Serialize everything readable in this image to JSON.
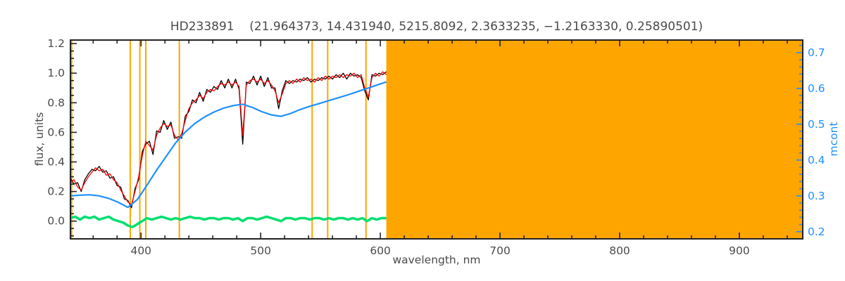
{
  "title": "HD233891    (21.964373, 14.431940, 5215.8092, 2.3633235, −1.2163330, 0.25890501)",
  "axes": {
    "left_label": "flux, units",
    "bottom_label": "wavelength, nm",
    "right_label": "mcont"
  },
  "chart_data": {
    "type": "line",
    "title": "HD233891    (21.964373, 14.431940, 5215.8092, 2.3633235, −1.2163330, 0.25890501)",
    "xlabel": "wavelength, nm",
    "ylabel_left": "flux, units",
    "ylabel_right": "mcont",
    "xlim": [
      341,
      953
    ],
    "ylim_left": [
      -0.12,
      1.224
    ],
    "ylim_right": [
      0.18,
      0.735
    ],
    "x_ticks": [
      400,
      500,
      600,
      700,
      800,
      900
    ],
    "y_ticks_left": [
      0.0,
      0.2,
      0.4,
      0.6,
      0.8,
      1.0,
      1.2
    ],
    "y_ticks_right": [
      0.2,
      0.3,
      0.4,
      0.5,
      0.6,
      0.7
    ],
    "x_minor_step": 20,
    "y_left_minor_step": 0.05,
    "y_right_minor_step": 0.02,
    "grid": false,
    "legend": "none",
    "colors": {
      "spectrum": "#000000",
      "fit": "#ff0000",
      "continuum": "#1e90ff",
      "residual": "#00df6f",
      "mask": "#ffa500",
      "frame": "#222222",
      "text": "#4a4a4a"
    },
    "masked_region": {
      "x_start": 605,
      "x_end": 953
    },
    "mask_lines_x": [
      342,
      391,
      399,
      404,
      432,
      543,
      556,
      588
    ],
    "series": [
      {
        "name": "observed-spectrum",
        "color_key": "spectrum",
        "axis": "left",
        "width": 1.3,
        "points": [
          [
            341,
            0.29
          ],
          [
            344,
            0.25
          ],
          [
            347,
            0.26
          ],
          [
            350,
            0.2
          ],
          [
            353,
            0.28
          ],
          [
            356,
            0.32
          ],
          [
            359,
            0.35
          ],
          [
            362,
            0.34
          ],
          [
            365,
            0.37
          ],
          [
            368,
            0.33
          ],
          [
            371,
            0.34
          ],
          [
            374,
            0.29
          ],
          [
            377,
            0.3
          ],
          [
            380,
            0.24
          ],
          [
            383,
            0.23
          ],
          [
            386,
            0.15
          ],
          [
            389,
            0.14
          ],
          [
            392,
            0.09
          ],
          [
            395,
            0.22
          ],
          [
            398,
            0.28
          ],
          [
            401,
            0.47
          ],
          [
            404,
            0.52
          ],
          [
            407,
            0.54
          ],
          [
            410,
            0.45
          ],
          [
            413,
            0.61
          ],
          [
            416,
            0.6
          ],
          [
            419,
            0.68
          ],
          [
            422,
            0.62
          ],
          [
            425,
            0.67
          ],
          [
            428,
            0.56
          ],
          [
            431,
            0.57
          ],
          [
            434,
            0.56
          ],
          [
            437,
            0.71
          ],
          [
            440,
            0.74
          ],
          [
            443,
            0.82
          ],
          [
            446,
            0.8
          ],
          [
            449,
            0.87
          ],
          [
            452,
            0.81
          ],
          [
            455,
            0.89
          ],
          [
            458,
            0.87
          ],
          [
            461,
            0.91
          ],
          [
            464,
            0.89
          ],
          [
            467,
            0.95
          ],
          [
            470,
            0.9
          ],
          [
            473,
            0.96
          ],
          [
            476,
            0.9
          ],
          [
            479,
            0.96
          ],
          [
            482,
            0.89
          ],
          [
            485,
            0.52
          ],
          [
            488,
            0.94
          ],
          [
            491,
            0.93
          ],
          [
            494,
            0.98
          ],
          [
            497,
            0.92
          ],
          [
            500,
            0.98
          ],
          [
            503,
            0.91
          ],
          [
            506,
            0.97
          ],
          [
            509,
            0.9
          ],
          [
            512,
            0.9
          ],
          [
            515,
            0.76
          ],
          [
            518,
            0.88
          ],
          [
            521,
            0.95
          ],
          [
            524,
            0.93
          ],
          [
            527,
            0.95
          ],
          [
            530,
            0.94
          ],
          [
            533,
            0.96
          ],
          [
            536,
            0.95
          ],
          [
            539,
            0.97
          ],
          [
            542,
            0.94
          ],
          [
            545,
            0.96
          ],
          [
            548,
            0.95
          ],
          [
            551,
            0.97
          ],
          [
            554,
            0.96
          ],
          [
            557,
            0.98
          ],
          [
            560,
            0.96
          ],
          [
            563,
            0.99
          ],
          [
            566,
            0.97
          ],
          [
            569,
            1.0
          ],
          [
            572,
            0.96
          ],
          [
            575,
            1.0
          ],
          [
            578,
            0.98
          ],
          [
            581,
            0.99
          ],
          [
            584,
            0.97
          ],
          [
            587,
            0.88
          ],
          [
            590,
            0.82
          ],
          [
            593,
            0.99
          ],
          [
            596,
            0.98
          ],
          [
            599,
            1.0
          ],
          [
            602,
            0.99
          ],
          [
            605,
            1.01
          ]
        ]
      },
      {
        "name": "fit-spectrum",
        "color_key": "fit",
        "axis": "left",
        "width": 1.3,
        "points": [
          [
            341,
            0.26
          ],
          [
            344,
            0.28
          ],
          [
            347,
            0.23
          ],
          [
            350,
            0.21
          ],
          [
            353,
            0.26
          ],
          [
            356,
            0.3
          ],
          [
            359,
            0.33
          ],
          [
            362,
            0.36
          ],
          [
            365,
            0.34
          ],
          [
            368,
            0.35
          ],
          [
            371,
            0.31
          ],
          [
            374,
            0.32
          ],
          [
            377,
            0.28
          ],
          [
            380,
            0.26
          ],
          [
            383,
            0.21
          ],
          [
            386,
            0.17
          ],
          [
            389,
            0.13
          ],
          [
            392,
            0.11
          ],
          [
            395,
            0.2
          ],
          [
            398,
            0.3
          ],
          [
            401,
            0.44
          ],
          [
            404,
            0.54
          ],
          [
            407,
            0.51
          ],
          [
            410,
            0.48
          ],
          [
            413,
            0.58
          ],
          [
            416,
            0.63
          ],
          [
            419,
            0.66
          ],
          [
            422,
            0.64
          ],
          [
            425,
            0.65
          ],
          [
            428,
            0.58
          ],
          [
            431,
            0.55
          ],
          [
            434,
            0.59
          ],
          [
            437,
            0.68
          ],
          [
            440,
            0.76
          ],
          [
            443,
            0.8
          ],
          [
            446,
            0.82
          ],
          [
            449,
            0.85
          ],
          [
            452,
            0.83
          ],
          [
            455,
            0.87
          ],
          [
            458,
            0.89
          ],
          [
            461,
            0.88
          ],
          [
            464,
            0.91
          ],
          [
            467,
            0.93
          ],
          [
            470,
            0.92
          ],
          [
            473,
            0.94
          ],
          [
            476,
            0.92
          ],
          [
            479,
            0.94
          ],
          [
            482,
            0.91
          ],
          [
            485,
            0.58
          ],
          [
            488,
            0.92
          ],
          [
            491,
            0.95
          ],
          [
            494,
            0.96
          ],
          [
            497,
            0.94
          ],
          [
            500,
            0.96
          ],
          [
            503,
            0.93
          ],
          [
            506,
            0.95
          ],
          [
            509,
            0.92
          ],
          [
            512,
            0.88
          ],
          [
            515,
            0.8
          ],
          [
            518,
            0.86
          ],
          [
            521,
            0.93
          ],
          [
            524,
            0.95
          ],
          [
            527,
            0.93
          ],
          [
            530,
            0.96
          ],
          [
            533,
            0.94
          ],
          [
            536,
            0.97
          ],
          [
            539,
            0.95
          ],
          [
            542,
            0.96
          ],
          [
            545,
            0.94
          ],
          [
            548,
            0.97
          ],
          [
            551,
            0.95
          ],
          [
            554,
            0.98
          ],
          [
            557,
            0.96
          ],
          [
            560,
            0.98
          ],
          [
            563,
            0.97
          ],
          [
            566,
            0.99
          ],
          [
            569,
            0.97
          ],
          [
            572,
            0.99
          ],
          [
            575,
            0.98
          ],
          [
            578,
            1.0
          ],
          [
            581,
            0.97
          ],
          [
            584,
            0.99
          ],
          [
            587,
            0.9
          ],
          [
            590,
            0.84
          ],
          [
            593,
            0.97
          ],
          [
            596,
            1.0
          ],
          [
            599,
            0.98
          ],
          [
            602,
            1.01
          ],
          [
            605,
            0.99
          ]
        ]
      },
      {
        "name": "residual",
        "color_key": "residual",
        "axis": "left",
        "width": 3.5,
        "points": [
          [
            341,
            0.02
          ],
          [
            345,
            0.03
          ],
          [
            349,
            0.01
          ],
          [
            353,
            0.03
          ],
          [
            357,
            0.02
          ],
          [
            361,
            0.03
          ],
          [
            365,
            0.01
          ],
          [
            369,
            0.02
          ],
          [
            373,
            0.03
          ],
          [
            377,
            0.01
          ],
          [
            381,
            0.0
          ],
          [
            385,
            -0.01
          ],
          [
            389,
            -0.03
          ],
          [
            393,
            -0.04
          ],
          [
            397,
            -0.02
          ],
          [
            401,
            0.0
          ],
          [
            405,
            0.02
          ],
          [
            409,
            0.01
          ],
          [
            413,
            0.02
          ],
          [
            417,
            0.03
          ],
          [
            421,
            0.02
          ],
          [
            425,
            0.01
          ],
          [
            429,
            0.02
          ],
          [
            433,
            0.01
          ],
          [
            437,
            0.02
          ],
          [
            441,
            0.03
          ],
          [
            445,
            0.02
          ],
          [
            449,
            0.02
          ],
          [
            453,
            0.01
          ],
          [
            457,
            0.02
          ],
          [
            461,
            0.02
          ],
          [
            465,
            0.01
          ],
          [
            469,
            0.02
          ],
          [
            473,
            0.02
          ],
          [
            477,
            0.01
          ],
          [
            481,
            0.02
          ],
          [
            485,
            0.0
          ],
          [
            489,
            0.02
          ],
          [
            493,
            0.02
          ],
          [
            497,
            0.01
          ],
          [
            501,
            0.02
          ],
          [
            505,
            0.03
          ],
          [
            509,
            0.02
          ],
          [
            513,
            0.01
          ],
          [
            517,
            0.0
          ],
          [
            521,
            0.02
          ],
          [
            525,
            0.02
          ],
          [
            529,
            0.01
          ],
          [
            533,
            0.02
          ],
          [
            537,
            0.02
          ],
          [
            541,
            0.01
          ],
          [
            545,
            0.02
          ],
          [
            549,
            0.02
          ],
          [
            553,
            0.01
          ],
          [
            557,
            0.02
          ],
          [
            561,
            0.01
          ],
          [
            565,
            0.02
          ],
          [
            569,
            0.02
          ],
          [
            573,
            0.01
          ],
          [
            577,
            0.02
          ],
          [
            581,
            0.01
          ],
          [
            585,
            0.02
          ],
          [
            589,
            0.0
          ],
          [
            593,
            0.02
          ],
          [
            597,
            0.01
          ],
          [
            601,
            0.02
          ],
          [
            605,
            0.02
          ]
        ]
      },
      {
        "name": "continuum-mcont",
        "color_key": "continuum",
        "axis": "right",
        "width": 2.2,
        "points": [
          [
            341,
            0.3
          ],
          [
            349,
            0.302
          ],
          [
            357,
            0.303
          ],
          [
            365,
            0.3
          ],
          [
            373,
            0.293
          ],
          [
            381,
            0.282
          ],
          [
            389,
            0.268
          ],
          [
            397,
            0.29
          ],
          [
            405,
            0.33
          ],
          [
            413,
            0.372
          ],
          [
            421,
            0.41
          ],
          [
            429,
            0.448
          ],
          [
            437,
            0.478
          ],
          [
            445,
            0.502
          ],
          [
            453,
            0.52
          ],
          [
            461,
            0.534
          ],
          [
            469,
            0.545
          ],
          [
            477,
            0.552
          ],
          [
            485,
            0.556
          ],
          [
            493,
            0.547
          ],
          [
            501,
            0.535
          ],
          [
            509,
            0.526
          ],
          [
            517,
            0.522
          ],
          [
            525,
            0.53
          ],
          [
            533,
            0.541
          ],
          [
            541,
            0.55
          ],
          [
            549,
            0.558
          ],
          [
            557,
            0.566
          ],
          [
            565,
            0.574
          ],
          [
            573,
            0.582
          ],
          [
            581,
            0.591
          ],
          [
            589,
            0.6
          ],
          [
            597,
            0.609
          ],
          [
            605,
            0.618
          ]
        ]
      }
    ]
  }
}
